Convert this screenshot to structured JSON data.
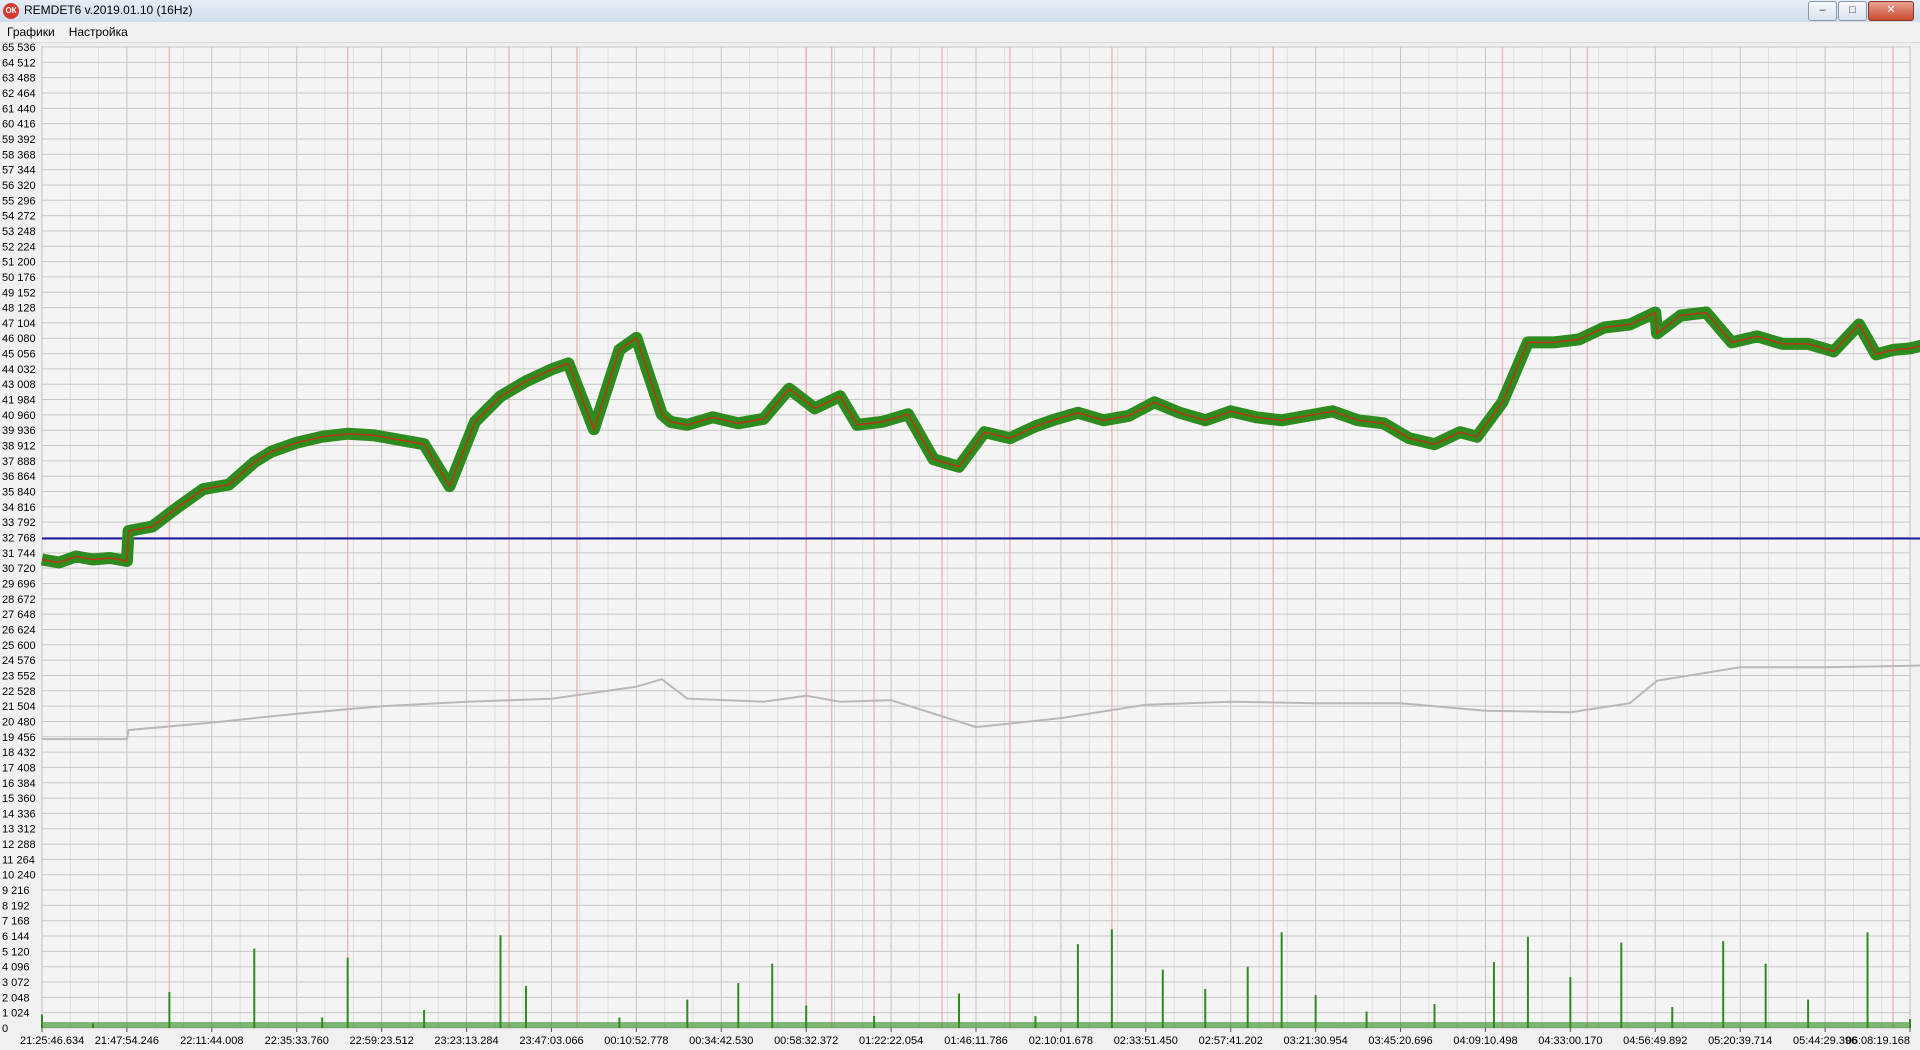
{
  "window": {
    "icon_label": "ОК",
    "title": "REMDET6 v.2019.01.10 (16Hz)",
    "controls": {
      "minimize": "–",
      "maximize": "□",
      "close": "✕"
    }
  },
  "menu": {
    "items": [
      {
        "label": "Графики"
      },
      {
        "label": "Настройка"
      }
    ]
  },
  "chart_data": {
    "type": "line",
    "title": "",
    "xlabel": "",
    "ylabel": "",
    "ylim": [
      0,
      65536
    ],
    "grid": true,
    "legend": "none",
    "y_ticks": [
      "0",
      "1 024",
      "2 048",
      "3 072",
      "4 096",
      "5 120",
      "6 144",
      "7 168",
      "8 192",
      "9 216",
      "10 240",
      "11 264",
      "12 288",
      "13 312",
      "14 336",
      "15 360",
      "16 384",
      "17 408",
      "18 432",
      "19 456",
      "20 480",
      "21 504",
      "22 528",
      "23 552",
      "24 576",
      "25 600",
      "26 624",
      "27 648",
      "28 672",
      "29 696",
      "30 720",
      "31 744",
      "32 768",
      "33 792",
      "34 816",
      "35 840",
      "36 864",
      "37 888",
      "38 912",
      "39 936",
      "40 960",
      "41 984",
      "43 008",
      "44 032",
      "45 056",
      "46 080",
      "47 104",
      "48 128",
      "49 152",
      "50 176",
      "51 200",
      "52 224",
      "53 248",
      "54 272",
      "55 296",
      "56 320",
      "57 344",
      "58 368",
      "59 392",
      "60 416",
      "61 440",
      "62 464",
      "63 488",
      "64 512",
      "65 536"
    ],
    "x_ticks": [
      "21:25:46.634",
      "21:47:54.246",
      "22:11:44.008",
      "22:35:33.760",
      "22:59:23.512",
      "23:23:13.284",
      "23:47:03.066",
      "00:10:52.778",
      "00:34:42.530",
      "00:58:32.372",
      "01:22:22.054",
      "01:46:11.786",
      "02:10:01.678",
      "02:33:51.450",
      "02:57:41.202",
      "03:21:30.954",
      "03:45:20.696",
      "04:09:10.498",
      "04:33:00.170",
      "04:56:49.892",
      "05:20:39.714",
      "05:44:29.396",
      "06:08:19.168"
    ],
    "series": [
      {
        "color": "#2e8b1e",
        "spike_color": "#e02010",
        "x": [
          0,
          0.2,
          0.4,
          0.6,
          0.8,
          1,
          1.02,
          1.3,
          1.6,
          1.9,
          2.2,
          2.5,
          2.7,
          3,
          3.3,
          3.6,
          3.9,
          4.2,
          4.5,
          4.8,
          5.1,
          5.4,
          5.7,
          6,
          6.2,
          6.5,
          6.8,
          7,
          7.3,
          7.4,
          7.6,
          7.9,
          8.2,
          8.5,
          8.8,
          9.1,
          9.4,
          9.6,
          9.9,
          10.2,
          10.5,
          10.8,
          11.1,
          11.4,
          11.7,
          11.9,
          12.2,
          12.5,
          12.8,
          13.1,
          13.4,
          13.7,
          14,
          14.3,
          14.6,
          14.9,
          15.2,
          15.5,
          15.8,
          16.1,
          16.4,
          16.7,
          16.9,
          17.2,
          17.5,
          17.8,
          18.1,
          18.4,
          18.7,
          19,
          19.02,
          19.3,
          19.6,
          19.9,
          20.2,
          20.5,
          20.8,
          21.1,
          21.4,
          21.6,
          21.8,
          22,
          22.3,
          22.6
        ],
        "values": [
          31300,
          31100,
          31500,
          31300,
          31400,
          31200,
          33200,
          33500,
          34800,
          36000,
          36300,
          37800,
          38500,
          39100,
          39500,
          39700,
          39600,
          39300,
          39000,
          36200,
          40500,
          42200,
          43200,
          44000,
          44400,
          40000,
          45300,
          46100,
          41000,
          40500,
          40300,
          40800,
          40400,
          40700,
          42700,
          41400,
          42200,
          40300,
          40500,
          41000,
          38000,
          37500,
          39800,
          39400,
          40200,
          40600,
          41100,
          40600,
          40900,
          41800,
          41100,
          40600,
          41200,
          40800,
          40600,
          40900,
          41200,
          40600,
          40400,
          39400,
          39000,
          39800,
          39500,
          41800,
          45800,
          45800,
          46000,
          46800,
          47000,
          47800,
          46400,
          47600,
          47800,
          45800,
          46200,
          45700,
          45700,
          45200,
          47000,
          45000,
          45300,
          45400,
          45800,
          46500
        ]
      },
      {
        "color": "#1a1aa0",
        "x": [
          0,
          22.6
        ],
        "values": [
          32700,
          32700
        ]
      },
      {
        "color": "#b8b8b8",
        "x": [
          0,
          1,
          1.02,
          2,
          3,
          4,
          5,
          6,
          7,
          7.3,
          7.6,
          8.5,
          9,
          9.4,
          10,
          11,
          12,
          13,
          14,
          15,
          16,
          17,
          18,
          18.7,
          19.02,
          20,
          21,
          22,
          22.6
        ],
        "values": [
          19300,
          19300,
          19900,
          20400,
          21000,
          21500,
          21800,
          22000,
          22800,
          23300,
          22000,
          21800,
          22200,
          21800,
          21900,
          20100,
          20700,
          21600,
          21800,
          21700,
          21700,
          21200,
          21100,
          21700,
          23200,
          24100,
          24100,
          24200,
          24300
        ]
      },
      {
        "color": "#2e8b1e",
        "x": [
          0,
          0.6,
          1.5,
          2.5,
          3.3,
          3.6,
          4.5,
          5.4,
          5.7,
          6.8,
          7.6,
          8.2,
          8.6,
          9,
          9.8,
          10.8,
          11.7,
          12.2,
          12.6,
          13.2,
          13.7,
          14.2,
          14.6,
          15,
          15.6,
          16.4,
          17.1,
          17.5,
          18.0,
          18.6,
          19.2,
          19.8,
          20.3,
          20.8,
          21.5,
          22.0,
          22.4
        ],
        "values": [
          900,
          300,
          2400,
          5300,
          700,
          4700,
          1200,
          6200,
          2800,
          700,
          1900,
          3000,
          4300,
          1500,
          800,
          2300,
          800,
          5600,
          6600,
          3900,
          2600,
          4100,
          6400,
          2200,
          1100,
          1600,
          4400,
          6100,
          3400,
          5700,
          1400,
          5800,
          4300,
          1900,
          6400,
          600,
          700
        ]
      }
    ],
    "highlight_lines_x": [
      1.5,
      3.6,
      5.5,
      6.3,
      9.0,
      9.3,
      9.8,
      10.6,
      11.4,
      12.6,
      14.5,
      17.2,
      18.2,
      21.8,
      22.4
    ]
  }
}
